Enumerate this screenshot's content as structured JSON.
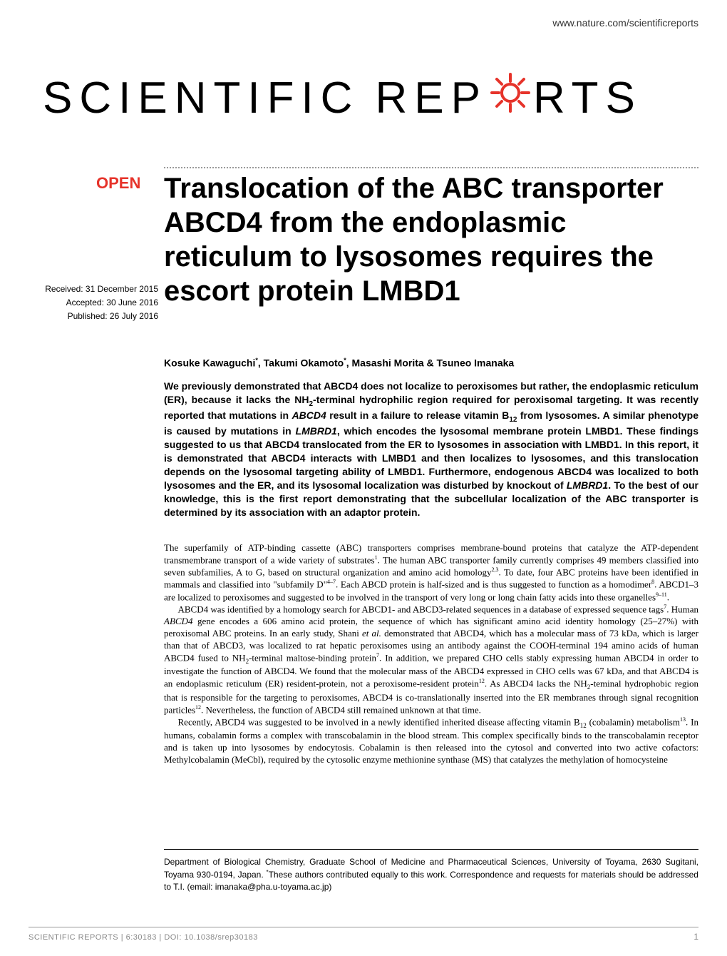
{
  "header": {
    "url": "www.nature.com/scientificreports"
  },
  "journal": {
    "logo_left": "SCIENTIFIC",
    "logo_right": "RTS",
    "logo_middle": "REP",
    "gear_color": "#e6332a"
  },
  "open_badge": "OPEN",
  "title": "Translocation of the ABC transporter ABCD4 from the endoplasmic reticulum to lysosomes requires the escort protein LMBD1",
  "dates": {
    "received": "Received: 31 December 2015",
    "accepted": "Accepted: 30 June 2016",
    "published": "Published: 26 July 2016"
  },
  "authors_html": "Kosuke Kawaguchi<sup>*</sup>, Takumi Okamoto<sup>*</sup>, Masashi Morita &amp; Tsuneo Imanaka",
  "abstract_html": "We previously demonstrated that ABCD4 does not localize to peroxisomes but rather, the endoplasmic reticulum (ER), because it lacks the NH<sub>2</sub>-terminal hydrophilic region required for peroxisomal targeting. It was recently reported that mutations in <em>ABCD4</em> result in a failure to release vitamin B<sub>12</sub> from lysosomes. A similar phenotype is caused by mutations in <em>LMBRD1</em>, which encodes the lysosomal membrane protein LMBD1. These findings suggested to us that ABCD4 translocated from the ER to lysosomes in association with LMBD1. In this report, it is demonstrated that ABCD4 interacts with LMBD1 and then localizes to lysosomes, and this translocation depends on the lysosomal targeting ability of LMBD1. Furthermore, endogenous ABCD4 was localized to both lysosomes and the ER, and its lysosomal localization was disturbed by knockout of <em>LMBRD1</em>. To the best of our knowledge, this is the first report demonstrating that the subcellular localization of the ABC transporter is determined by its association with an adaptor protein.",
  "body_paragraphs": [
    "The superfamily of ATP-binding cassette (ABC) transporters comprises membrane-bound proteins that catalyze the ATP-dependent transmembrane transport of a wide variety of substrates<sup>1</sup>. The human ABC transporter family currently comprises 49 members classified into seven subfamilies, A to G, based on structural organization and amino acid homology<sup>2,3</sup>. To date, four ABC proteins have been identified in mammals and classified into \"subfamily D\"<sup>4–7</sup>. Each ABCD protein is half-sized and is thus suggested to function as a homodimer<sup>8</sup>. ABCD1–3 are localized to peroxisomes and suggested to be involved in the transport of very long or long chain fatty acids into these organelles<sup>9–11</sup>.",
    "ABCD4 was identified by a homology search for ABCD1- and ABCD3-related sequences in a database of expressed sequence tags<sup>7</sup>. Human <em>ABCD4</em> gene encodes a 606 amino acid protein, the sequence of which has significant amino acid identity homology (25–27%) with peroxisomal ABC proteins. In an early study, Shani <em>et al.</em> demonstrated that ABCD4, which has a molecular mass of 73 kDa, which is larger than that of ABCD3, was localized to rat hepatic peroxisomes using an antibody against the COOH-terminal 194 amino acids of human ABCD4 fused to NH<sub>2</sub>-terminal maltose-binding protein<sup>7</sup>. In addition, we prepared CHO cells stably expressing human ABCD4 in order to investigate the function of ABCD4. We found that the molecular mass of the ABCD4 expressed in CHO cells was 67 kDa, and that ABCD4 is an endoplasmic reticulum (ER) resident-protein, not a peroxisome-resident protein<sup>12</sup>. As ABCD4 lacks the NH<sub>2</sub>-teminal hydrophobic region that is responsible for the targeting to peroxisomes, ABCD4 is co-translationally inserted into the ER membranes through signal recognition particles<sup>12</sup>. Nevertheless, the function of ABCD4 still remained unknown at that time.",
    "Recently, ABCD4 was suggested to be involved in a newly identified inherited disease affecting vitamin B<sub>12</sub> (cobalamin) metabolism<sup>13</sup>. In humans, cobalamin forms a complex with transcobalamin in the blood stream. This complex specifically binds to the transcobalamin receptor and is taken up into lysosomes by endocytosis. Cobalamin is then released into the cytosol and converted into two active cofactors: Methylcobalamin (MeCbl), required by the cytosolic enzyme methionine synthase (MS) that catalyzes the methylation of homocysteine"
  ],
  "affiliation_html": "Department of Biological Chemistry, Graduate School of Medicine and Pharmaceutical Sciences, University of Toyama, 2630 Sugitani, Toyama 930-0194, Japan. <sup>*</sup>These authors contributed equally to this work. Correspondence and requests for materials should be addressed to T.I. (email: imanaka@pha.u-toyama.ac.jp)",
  "footer": {
    "citation": "SCIENTIFIC REPORTS | 6:30183 | DOI: 10.1038/srep30183",
    "page": "1"
  }
}
